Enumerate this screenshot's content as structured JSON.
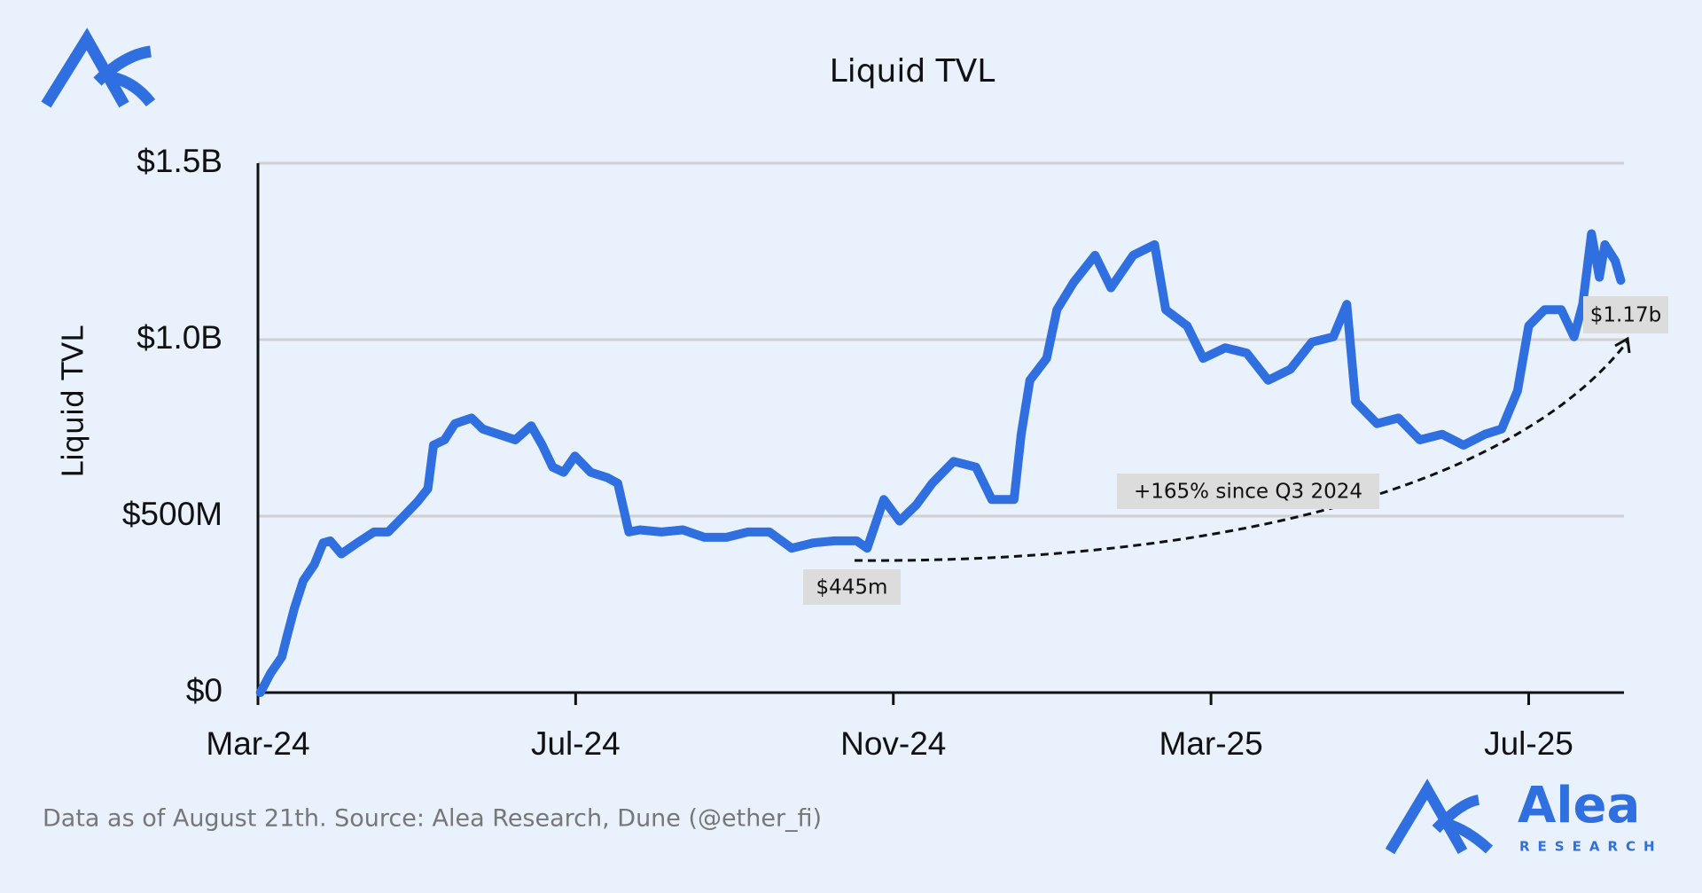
{
  "chart_data": {
    "type": "line",
    "title": "Liquid TVL",
    "y_label": "Liquid TVL",
    "x": [
      0.03,
      0.16,
      0.3,
      0.37,
      0.46,
      0.57,
      0.71,
      0.82,
      0.91,
      1.05,
      1.25,
      1.46,
      1.64,
      1.8,
      2.01,
      2.14,
      2.21,
      2.35,
      2.48,
      2.69,
      2.83,
      3.03,
      3.24,
      3.44,
      3.58,
      3.71,
      3.85,
      3.99,
      4.19,
      4.4,
      4.53,
      4.67,
      4.81,
      5.08,
      5.35,
      5.62,
      5.9,
      6.17,
      6.44,
      6.72,
      6.99,
      7.26,
      7.54,
      7.67,
      7.88,
      8.08,
      8.29,
      8.49,
      8.76,
      9.04,
      9.24,
      9.52,
      9.61,
      9.72,
      9.93,
      10.06,
      10.27,
      10.54,
      10.74,
      11.02,
      11.29,
      11.43,
      11.7,
      11.9,
      12.18,
      12.45,
      12.72,
      13.0,
      13.27,
      13.54,
      13.71,
      13.82,
      14.09,
      14.36,
      14.63,
      14.91,
      15.18,
      15.45,
      15.66,
      15.86,
      16.0,
      16.2,
      16.41,
      16.57,
      16.68,
      16.79,
      16.89,
      16.96,
      17.09,
      17.16
    ],
    "values": [
      0,
      55,
      101,
      163,
      240,
      317,
      363,
      424,
      430,
      393,
      424,
      455,
      455,
      492,
      541,
      578,
      701,
      716,
      762,
      778,
      747,
      732,
      716,
      756,
      701,
      639,
      624,
      670,
      624,
      609,
      593,
      455,
      461,
      455,
      461,
      440,
      440,
      455,
      455,
      409,
      424,
      430,
      430,
      409,
      547,
      486,
      532,
      593,
      655,
      639,
      547,
      547,
      732,
      885,
      947,
      1085,
      1162,
      1239,
      1147,
      1239,
      1269,
      1085,
      1039,
      947,
      977,
      962,
      885,
      916,
      993,
      1008,
      1100,
      824,
      762,
      778,
      716,
      732,
      701,
      732,
      747,
      855,
      1039,
      1085,
      1085,
      1008,
      1100,
      1300,
      1177,
      1269,
      1223,
      1168
    ],
    "color": "#2f6fe0",
    "xlim": [
      0,
      17.2
    ],
    "xticks": [
      {
        "value": 0,
        "label": "Mar-24"
      },
      {
        "value": 4,
        "label": "Jul-24"
      },
      {
        "value": 8,
        "label": "Nov-24"
      },
      {
        "value": 12,
        "label": "Mar-25"
      },
      {
        "value": 16,
        "label": "Jul-25"
      }
    ],
    "ylim": [
      0,
      1500
    ],
    "yticks": [
      {
        "value": 0,
        "label": "$0"
      },
      {
        "value": 500,
        "label": "$500M"
      },
      {
        "value": 1000,
        "label": "$1.0B"
      },
      {
        "value": 1500,
        "label": "$1.5B"
      }
    ],
    "grid": true,
    "annotations": [
      "$445m",
      "+165% since Q3 2024",
      "$1.17b"
    ],
    "footer": "Data as of August 21th. Source: Alea Research, Dune (@ether_fi)",
    "brand": {
      "name": "Alea",
      "sub": "RESEARCH"
    }
  }
}
